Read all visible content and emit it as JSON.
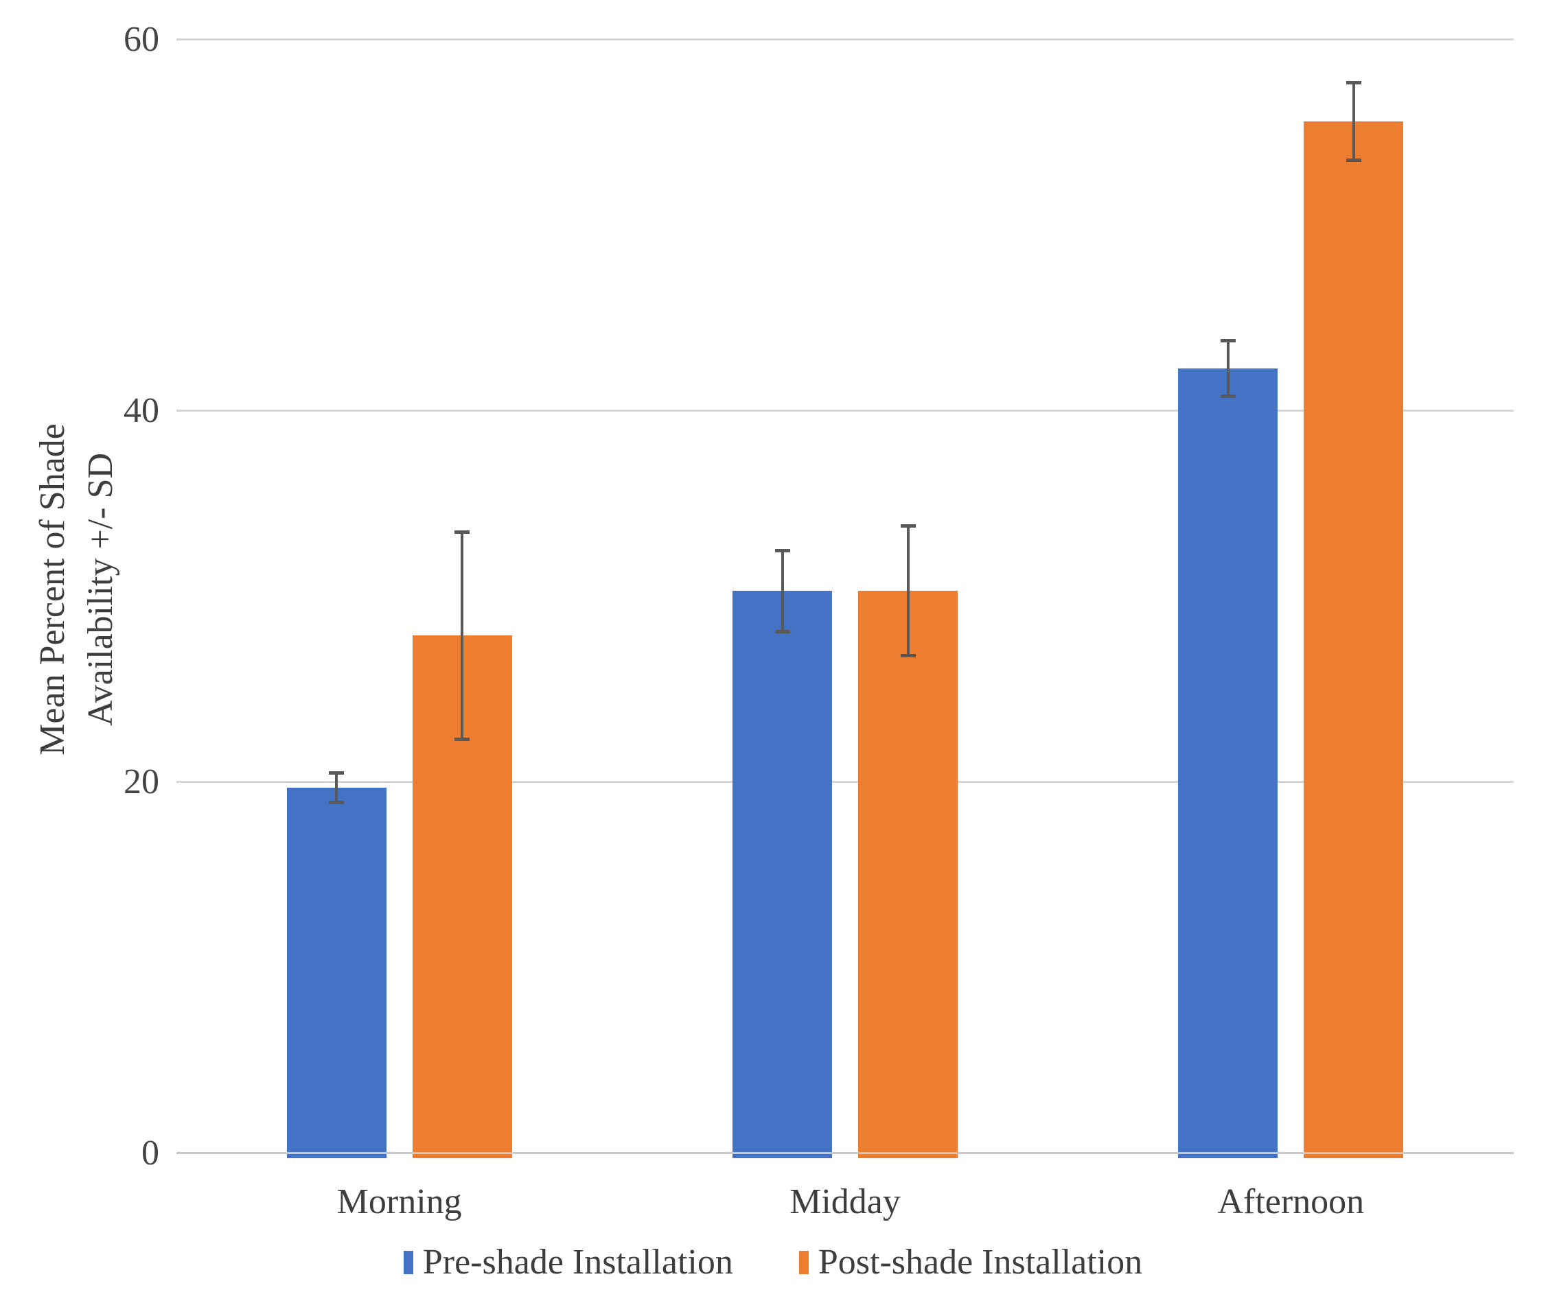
{
  "chart_data": {
    "type": "bar",
    "title": "",
    "categories": [
      "Morning",
      "Midday",
      "Afternoon"
    ],
    "series": [
      {
        "name": "Pre-shade Installation",
        "color": "#4472C4",
        "values": [
          19.7,
          30.3,
          42.3
        ],
        "sd": [
          0.7,
          2.1,
          1.4
        ]
      },
      {
        "name": "Post-shade Installation",
        "color": "#ED7D31",
        "values": [
          27.9,
          30.3,
          55.6
        ],
        "sd": [
          5.5,
          3.4,
          2.0
        ]
      }
    ],
    "error_bars": "+/- SD",
    "xlabel": "",
    "ylabel": "Mean Percent of Shade Availability +/- SD",
    "ylabel_lines": [
      "Mean Percent of Shade",
      "Availability +/- SD"
    ],
    "yticks": [
      0,
      20,
      40,
      60
    ],
    "ylim": [
      0,
      60
    ],
    "grid": true,
    "legend_position": "bottom",
    "colors": {
      "gridline": "#D6D6D6",
      "axis_line": "#C8C8C8",
      "error_bar": "#595959",
      "text": "#3d3d3d"
    }
  }
}
